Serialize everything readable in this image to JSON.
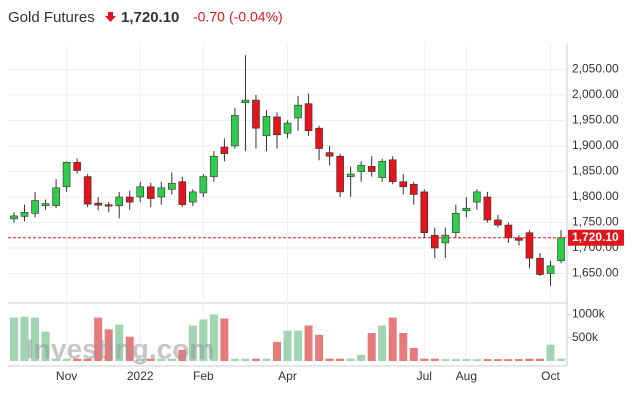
{
  "header": {
    "title": "Gold Futures",
    "price": "1,720.10",
    "change": "-0.70",
    "change_percent": "(-0.04%)"
  },
  "chart_data": {
    "type": "candlestick",
    "watermark": "Investing.com",
    "categories": [
      null,
      null,
      null,
      null,
      null,
      "Nov",
      null,
      null,
      null,
      null,
      null,
      null,
      "2022",
      null,
      null,
      null,
      null,
      null,
      "Feb",
      null,
      null,
      null,
      null,
      null,
      null,
      null,
      "Apr",
      null,
      null,
      null,
      null,
      null,
      null,
      null,
      null,
      null,
      null,
      null,
      null,
      "Jul",
      null,
      null,
      null,
      "Aug",
      null,
      null,
      null,
      null,
      null,
      null,
      null,
      "Oct",
      null
    ],
    "open": [
      1757,
      1762,
      1768,
      1783,
      1783,
      1820,
      1868,
      1840,
      1788,
      1785,
      1783,
      1800,
      1800,
      1820,
      1800,
      1815,
      1830,
      1790,
      1808,
      1840,
      1898,
      1900,
      1985,
      1990,
      1920,
      1957,
      1925,
      1955,
      1983,
      1935,
      1887,
      1880,
      1840,
      1850,
      1860,
      1838,
      1873,
      1830,
      1825,
      1810,
      1725,
      1710,
      1730,
      1773,
      1790,
      1800,
      1755,
      1745,
      1720,
      1730,
      1680,
      1650,
      1675
    ],
    "close": [
      1763,
      1770,
      1793,
      1787,
      1818,
      1868,
      1852,
      1786,
      1784,
      1782,
      1800,
      1790,
      1820,
      1797,
      1818,
      1827,
      1785,
      1810,
      1840,
      1880,
      1885,
      1960,
      1990,
      1935,
      1958,
      1922,
      1945,
      1980,
      1930,
      1895,
      1880,
      1810,
      1845,
      1862,
      1850,
      1870,
      1830,
      1820,
      1805,
      1730,
      1700,
      1725,
      1768,
      1778,
      1810,
      1755,
      1745,
      1720,
      1715,
      1680,
      1648,
      1665,
      1720
    ],
    "high": [
      1770,
      1785,
      1810,
      1795,
      1835,
      1870,
      1876,
      1845,
      1800,
      1790,
      1810,
      1812,
      1830,
      1828,
      1830,
      1848,
      1840,
      1815,
      1845,
      1890,
      1915,
      1975,
      2078,
      2000,
      1970,
      1966,
      1950,
      1998,
      2003,
      1940,
      1900,
      1885,
      1860,
      1870,
      1880,
      1875,
      1880,
      1845,
      1830,
      1815,
      1740,
      1740,
      1785,
      1800,
      1815,
      1810,
      1765,
      1750,
      1725,
      1735,
      1690,
      1675,
      1735
    ],
    "low": [
      1750,
      1752,
      1760,
      1775,
      1778,
      1810,
      1846,
      1780,
      1774,
      1770,
      1758,
      1775,
      1790,
      1780,
      1785,
      1805,
      1780,
      1782,
      1800,
      1830,
      1870,
      1895,
      1890,
      1895,
      1890,
      1895,
      1915,
      1930,
      1920,
      1872,
      1862,
      1800,
      1800,
      1830,
      1840,
      1830,
      1825,
      1805,
      1785,
      1720,
      1680,
      1680,
      1720,
      1760,
      1775,
      1750,
      1740,
      1710,
      1705,
      1660,
      1645,
      1625,
      1670
    ],
    "volume": [
      930000,
      950000,
      930000,
      630000,
      50000,
      50000,
      50000,
      50000,
      930000,
      680000,
      780000,
      520000,
      50000,
      50000,
      50000,
      50000,
      240000,
      760000,
      890000,
      1000000,
      910000,
      50000,
      50000,
      50000,
      50000,
      410000,
      650000,
      650000,
      760000,
      560000,
      50000,
      50000,
      50000,
      130000,
      600000,
      760000,
      930000,
      600000,
      280000,
      50000,
      50000,
      40000,
      40000,
      40000,
      40000,
      40000,
      40000,
      40000,
      40000,
      50000,
      50000,
      350000,
      50000
    ],
    "ylim": [
      1600,
      2100
    ],
    "yticks": [
      {
        "value": 1650,
        "label": "1,650.00"
      },
      {
        "value": 1700,
        "label": "1,700.00"
      },
      {
        "value": 1750,
        "label": "1,750.00"
      },
      {
        "value": 1800,
        "label": "1,800.00"
      },
      {
        "value": 1850,
        "label": "1,850.00"
      },
      {
        "value": 1900,
        "label": "1,900.00"
      },
      {
        "value": 1950,
        "label": "1,950.00"
      },
      {
        "value": 2000,
        "label": "2,000.00"
      },
      {
        "value": 2050,
        "label": "2,050.00"
      }
    ],
    "volume_ylim": [
      0,
      1200000
    ],
    "volume_ticks": [
      {
        "value": 500000,
        "label": "500k"
      },
      {
        "value": 1000000,
        "label": "1000k"
      }
    ],
    "last_price": {
      "value": 1720.1,
      "label": "1,720.10"
    },
    "up_color": "#2ecc4a",
    "down_color": "#e2151d",
    "volume_up_color": "#9fd5b1",
    "volume_down_color": "#e77b7b",
    "grid": true
  }
}
